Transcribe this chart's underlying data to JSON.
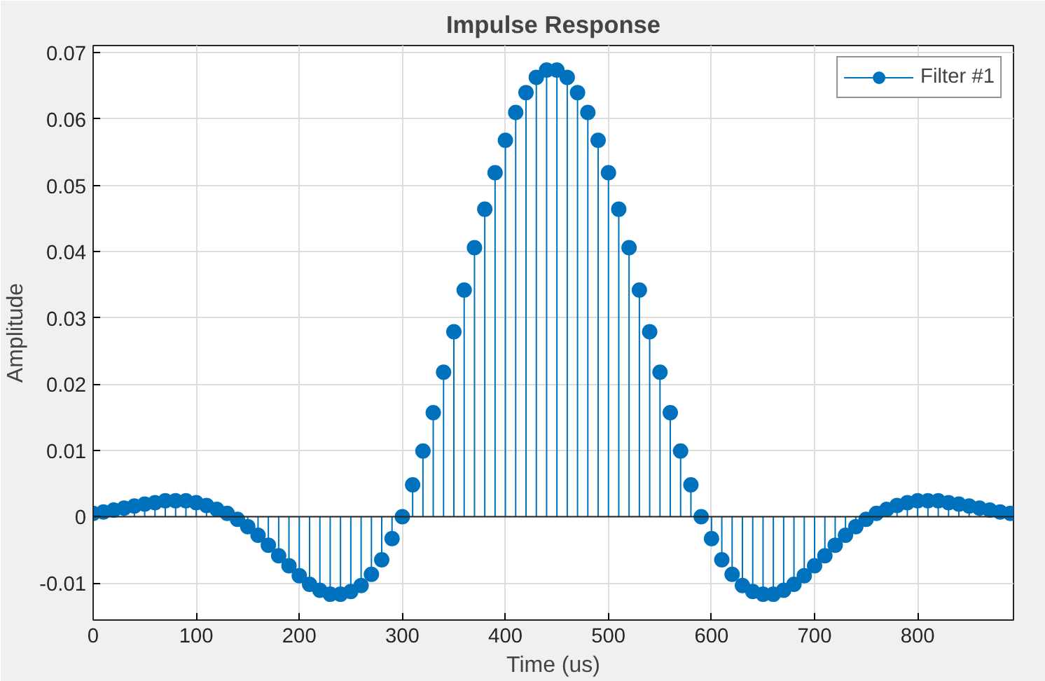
{
  "chart_data": {
    "type": "lollipop",
    "title": "Impulse Response",
    "xlabel": "Time (us)",
    "ylabel": "Amplitude",
    "x": [
      0,
      10,
      20,
      30,
      40,
      50,
      60,
      70,
      80,
      90,
      100,
      110,
      120,
      130,
      140,
      150,
      160,
      170,
      180,
      190,
      200,
      210,
      220,
      230,
      240,
      250,
      260,
      270,
      280,
      290,
      300,
      310,
      320,
      330,
      340,
      350,
      360,
      370,
      380,
      390,
      400,
      410,
      420,
      430,
      440,
      450,
      460,
      470,
      480,
      490,
      500,
      510,
      520,
      530,
      540,
      550,
      560,
      570,
      580,
      590,
      600,
      610,
      620,
      630,
      640,
      650,
      660,
      670,
      680,
      690,
      700,
      710,
      720,
      730,
      740,
      750,
      760,
      770,
      780,
      790,
      800,
      810,
      820,
      830,
      840,
      850,
      860,
      870,
      880,
      890
    ],
    "series": [
      {
        "name": "Filter #1",
        "color": "#0072bd",
        "values": [
          0.0005,
          0.0007,
          0.001,
          0.0013,
          0.0016,
          0.0019,
          0.0021,
          0.0024,
          0.0024,
          0.0024,
          0.0021,
          0.0017,
          0.0011,
          0.0005,
          -0.0004,
          -0.0015,
          -0.0028,
          -0.0043,
          -0.0059,
          -0.0074,
          -0.0089,
          -0.0102,
          -0.0111,
          -0.0117,
          -0.0117,
          -0.0113,
          -0.0104,
          -0.0087,
          -0.0065,
          -0.0033,
          0.0,
          0.0048,
          0.0099,
          0.0157,
          0.0218,
          0.0279,
          0.0342,
          0.0406,
          0.0464,
          0.0519,
          0.0568,
          0.061,
          0.064,
          0.0663,
          0.0674,
          0.0674,
          0.0663,
          0.064,
          0.061,
          0.0568,
          0.0519,
          0.0464,
          0.0406,
          0.0342,
          0.0279,
          0.0218,
          0.0157,
          0.0099,
          0.0048,
          0.0,
          -0.0033,
          -0.0065,
          -0.0087,
          -0.0104,
          -0.0113,
          -0.0117,
          -0.0117,
          -0.0111,
          -0.0102,
          -0.0089,
          -0.0074,
          -0.0059,
          -0.0043,
          -0.0028,
          -0.0015,
          -0.0004,
          0.0005,
          0.0011,
          0.0017,
          0.0021,
          0.0024,
          0.0024,
          0.0024,
          0.0021,
          0.0019,
          0.0016,
          0.0013,
          0.001,
          0.0007,
          0.0005
        ]
      }
    ],
    "xlim": [
      0,
      893
    ],
    "ylim": [
      -0.0156,
      0.0711
    ],
    "xticks": [
      0,
      100,
      200,
      300,
      400,
      500,
      600,
      700,
      800
    ],
    "yticks": [
      -0.01,
      0,
      0.01,
      0.02,
      0.03,
      0.04,
      0.05,
      0.06,
      0.07
    ],
    "grid": true,
    "legend": "top right",
    "marker": "circle"
  }
}
